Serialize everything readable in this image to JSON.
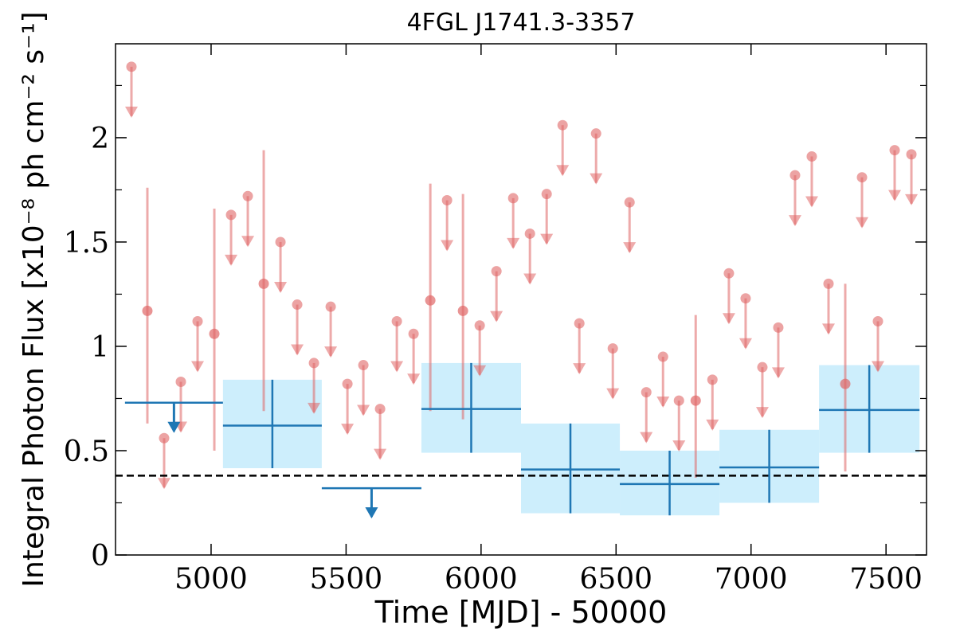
{
  "chart_data": {
    "type": "lightcurve",
    "title": "4FGL J1741.3-3357",
    "xlabel": "Time [MJD] - 50000",
    "ylabel": "Integral Photon Flux [x10⁻⁸ ph cm⁻² s⁻¹]",
    "xlim": [
      4646,
      7650
    ],
    "ylim": [
      0,
      2.45
    ],
    "xticks": [
      5000,
      5500,
      6000,
      6500,
      7000,
      7500
    ],
    "yticks": [
      0,
      0.5,
      1,
      1.5,
      2
    ],
    "yminorticks": [
      0.25,
      0.75,
      1.25,
      1.75,
      2.25
    ],
    "reference_line": {
      "value": 0.38,
      "color": "#000000"
    },
    "series": [
      {
        "color": "#e06666",
        "x": [
          4705,
          4764,
          4826,
          4888,
          4950,
          5012,
          5074,
          5136,
          5195,
          5257,
          5319,
          5381,
          5443,
          5505,
          5564,
          5626,
          5688,
          5750,
          5812,
          5874,
          5933,
          5995,
          6057,
          6119,
          6181,
          6243,
          6302,
          6364,
          6426,
          6488,
          6550,
          6612,
          6674,
          6733,
          6795,
          6857,
          6918,
          6980,
          7042,
          7101,
          7163,
          7225,
          7287,
          7349,
          7411,
          7470,
          7532,
          7594
        ],
        "values": [
          2.34,
          1.17,
          0.56,
          0.83,
          1.12,
          1.06,
          1.63,
          1.72,
          1.3,
          1.5,
          1.2,
          0.92,
          1.19,
          0.82,
          0.91,
          0.7,
          1.12,
          1.06,
          1.22,
          1.7,
          1.17,
          1.1,
          1.36,
          1.71,
          1.54,
          1.73,
          2.06,
          1.11,
          2.02,
          0.99,
          1.69,
          0.78,
          0.95,
          0.74,
          0.74,
          0.84,
          1.35,
          1.23,
          0.9,
          1.09,
          1.82,
          1.91,
          1.3,
          0.82,
          1.81,
          1.12,
          1.94,
          1.92
        ],
        "lower": [
          null,
          0.63,
          null,
          null,
          null,
          0.5,
          null,
          null,
          0.69,
          null,
          null,
          null,
          null,
          null,
          null,
          null,
          null,
          null,
          0.69,
          null,
          0.65,
          null,
          null,
          null,
          null,
          null,
          null,
          null,
          null,
          null,
          null,
          null,
          null,
          null,
          0.37,
          null,
          null,
          null,
          null,
          null,
          null,
          null,
          null,
          0.4,
          null,
          null,
          null,
          null
        ],
        "upper": [
          null,
          1.76,
          null,
          null,
          null,
          1.66,
          null,
          null,
          1.94,
          null,
          null,
          null,
          null,
          null,
          null,
          null,
          null,
          null,
          1.78,
          null,
          1.73,
          null,
          null,
          null,
          null,
          null,
          null,
          null,
          null,
          null,
          null,
          null,
          null,
          null,
          1.15,
          null,
          null,
          null,
          null,
          null,
          null,
          null,
          null,
          1.3,
          null,
          null,
          null,
          null
        ],
        "upper_limit": [
          true,
          false,
          true,
          true,
          true,
          false,
          true,
          true,
          false,
          true,
          true,
          true,
          true,
          true,
          true,
          true,
          true,
          true,
          false,
          true,
          false,
          true,
          true,
          true,
          true,
          true,
          true,
          true,
          true,
          true,
          true,
          true,
          true,
          true,
          false,
          true,
          true,
          true,
          true,
          true,
          true,
          true,
          true,
          false,
          true,
          true,
          true,
          true
        ]
      },
      {
        "color": "#1f77b4",
        "band_color": "#cdeefc",
        "x_start": [
          4681,
          5044,
          5410,
          5779,
          6148,
          6514,
          6883,
          7252
        ],
        "x_end": [
          5044,
          5410,
          5779,
          6148,
          6514,
          6883,
          7252,
          7624
        ],
        "values": [
          0.73,
          0.62,
          0.32,
          0.7,
          0.41,
          0.34,
          0.42,
          0.695
        ],
        "lower": [
          null,
          0.416,
          null,
          0.49,
          0.2,
          0.19,
          0.25,
          0.49
        ],
        "upper": [
          null,
          0.84,
          null,
          0.92,
          0.63,
          0.5,
          0.6,
          0.91
        ],
        "upper_limit": [
          true,
          false,
          true,
          false,
          false,
          false,
          false,
          false
        ]
      }
    ]
  }
}
